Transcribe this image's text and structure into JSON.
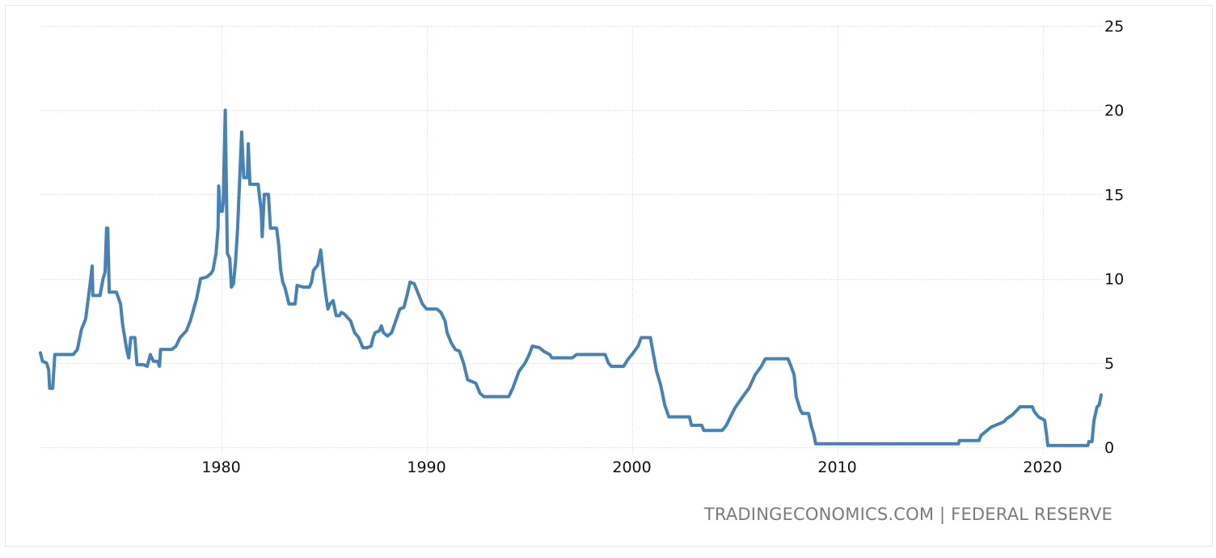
{
  "chart_data": {
    "type": "line",
    "title": "",
    "xlabel": "",
    "ylabel": "",
    "xlim": [
      1971.2,
      2022.85
    ],
    "ylim": [
      0,
      25
    ],
    "x_ticks": [
      1980,
      1990,
      2000,
      2010,
      2020
    ],
    "x_tick_labels": [
      "1980",
      "1990",
      "2000",
      "2010",
      "2020"
    ],
    "y_ticks": [
      0,
      5,
      10,
      15,
      20,
      25
    ],
    "y_tick_labels": [
      "0",
      "5",
      "10",
      "15",
      "20",
      "25"
    ],
    "grid": true,
    "legend": "none",
    "color": "#4682b4",
    "series": [
      {
        "points": [
          [
            1971.2,
            5.6
          ],
          [
            1971.3,
            5.1
          ],
          [
            1971.5,
            5.0
          ],
          [
            1971.6,
            4.6
          ],
          [
            1971.65,
            3.5
          ],
          [
            1971.8,
            3.5
          ],
          [
            1971.9,
            5.5
          ],
          [
            1972.8,
            5.5
          ],
          [
            1973.0,
            5.8
          ],
          [
            1973.2,
            7.0
          ],
          [
            1973.4,
            7.6
          ],
          [
            1973.6,
            9.5
          ],
          [
            1973.72,
            10.75
          ],
          [
            1973.75,
            9.0
          ],
          [
            1974.1,
            9.0
          ],
          [
            1974.25,
            10.0
          ],
          [
            1974.35,
            10.4
          ],
          [
            1974.42,
            13.0
          ],
          [
            1974.48,
            13.0
          ],
          [
            1974.55,
            9.2
          ],
          [
            1974.9,
            9.2
          ],
          [
            1975.1,
            8.5
          ],
          [
            1975.2,
            7.3
          ],
          [
            1975.4,
            5.8
          ],
          [
            1975.5,
            5.3
          ],
          [
            1975.6,
            6.5
          ],
          [
            1975.8,
            6.5
          ],
          [
            1975.9,
            4.9
          ],
          [
            1976.2,
            4.9
          ],
          [
            1976.4,
            4.8
          ],
          [
            1976.55,
            5.5
          ],
          [
            1976.7,
            5.1
          ],
          [
            1976.9,
            5.1
          ],
          [
            1977.0,
            4.8
          ],
          [
            1977.05,
            5.8
          ],
          [
            1977.6,
            5.8
          ],
          [
            1977.8,
            6.0
          ],
          [
            1978.0,
            6.5
          ],
          [
            1978.3,
            6.9
          ],
          [
            1978.5,
            7.5
          ],
          [
            1978.8,
            8.8
          ],
          [
            1979.0,
            10.0
          ],
          [
            1979.3,
            10.1
          ],
          [
            1979.5,
            10.3
          ],
          [
            1979.6,
            10.5
          ],
          [
            1979.75,
            11.5
          ],
          [
            1979.85,
            13.0
          ],
          [
            1979.88,
            15.5
          ],
          [
            1979.95,
            14.0
          ],
          [
            1980.05,
            14.0
          ],
          [
            1980.1,
            14.5
          ],
          [
            1980.2,
            20.0
          ],
          [
            1980.3,
            11.5
          ],
          [
            1980.42,
            11.2
          ],
          [
            1980.5,
            9.5
          ],
          [
            1980.6,
            9.7
          ],
          [
            1980.7,
            11.0
          ],
          [
            1980.8,
            13.0
          ],
          [
            1981.0,
            18.7
          ],
          [
            1981.1,
            16.0
          ],
          [
            1981.28,
            16.0
          ],
          [
            1981.32,
            18.0
          ],
          [
            1981.4,
            15.6
          ],
          [
            1981.8,
            15.6
          ],
          [
            1981.95,
            14.0
          ],
          [
            1982.0,
            12.5
          ],
          [
            1982.1,
            15.0
          ],
          [
            1982.3,
            15.0
          ],
          [
            1982.4,
            13.0
          ],
          [
            1982.7,
            13.0
          ],
          [
            1982.8,
            12.0
          ],
          [
            1982.9,
            10.5
          ],
          [
            1983.0,
            9.8
          ],
          [
            1983.1,
            9.5
          ],
          [
            1983.3,
            8.5
          ],
          [
            1983.6,
            8.5
          ],
          [
            1983.7,
            9.6
          ],
          [
            1984.0,
            9.5
          ],
          [
            1984.3,
            9.5
          ],
          [
            1984.4,
            9.8
          ],
          [
            1984.5,
            10.5
          ],
          [
            1984.7,
            10.8
          ],
          [
            1984.85,
            11.7
          ],
          [
            1984.95,
            10.5
          ],
          [
            1985.1,
            9.0
          ],
          [
            1985.2,
            8.2
          ],
          [
            1985.3,
            8.5
          ],
          [
            1985.45,
            8.7
          ],
          [
            1985.6,
            7.8
          ],
          [
            1985.75,
            7.8
          ],
          [
            1985.85,
            8.0
          ],
          [
            1986.0,
            7.9
          ],
          [
            1986.3,
            7.5
          ],
          [
            1986.5,
            6.8
          ],
          [
            1986.7,
            6.5
          ],
          [
            1986.9,
            5.9
          ],
          [
            1987.1,
            5.9
          ],
          [
            1987.3,
            6.0
          ],
          [
            1987.4,
            6.5
          ],
          [
            1987.5,
            6.8
          ],
          [
            1987.7,
            6.9
          ],
          [
            1987.8,
            7.2
          ],
          [
            1987.9,
            6.8
          ],
          [
            1988.1,
            6.6
          ],
          [
            1988.3,
            6.8
          ],
          [
            1988.5,
            7.5
          ],
          [
            1988.7,
            8.2
          ],
          [
            1988.9,
            8.3
          ],
          [
            1989.05,
            9.0
          ],
          [
            1989.2,
            9.8
          ],
          [
            1989.4,
            9.7
          ],
          [
            1989.6,
            9.1
          ],
          [
            1989.8,
            8.5
          ],
          [
            1990.0,
            8.2
          ],
          [
            1990.5,
            8.2
          ],
          [
            1990.7,
            8.0
          ],
          [
            1990.9,
            7.5
          ],
          [
            1991.0,
            6.8
          ],
          [
            1991.2,
            6.2
          ],
          [
            1991.4,
            5.8
          ],
          [
            1991.6,
            5.7
          ],
          [
            1991.8,
            5.0
          ],
          [
            1992.0,
            4.0
          ],
          [
            1992.2,
            3.9
          ],
          [
            1992.4,
            3.8
          ],
          [
            1992.6,
            3.2
          ],
          [
            1992.8,
            3.0
          ],
          [
            1994.0,
            3.0
          ],
          [
            1994.2,
            3.5
          ],
          [
            1994.5,
            4.5
          ],
          [
            1994.8,
            5.0
          ],
          [
            1995.0,
            5.5
          ],
          [
            1995.15,
            6.0
          ],
          [
            1995.5,
            5.9
          ],
          [
            1995.7,
            5.7
          ],
          [
            1996.0,
            5.5
          ],
          [
            1996.1,
            5.3
          ],
          [
            1997.1,
            5.3
          ],
          [
            1997.3,
            5.5
          ],
          [
            1998.7,
            5.5
          ],
          [
            1998.85,
            5.0
          ],
          [
            1999.0,
            4.8
          ],
          [
            1999.6,
            4.8
          ],
          [
            1999.8,
            5.2
          ],
          [
            2000.0,
            5.5
          ],
          [
            2000.3,
            6.0
          ],
          [
            2000.45,
            6.5
          ],
          [
            2000.9,
            6.5
          ],
          [
            2001.05,
            5.5
          ],
          [
            2001.2,
            4.5
          ],
          [
            2001.4,
            3.7
          ],
          [
            2001.6,
            2.5
          ],
          [
            2001.8,
            1.8
          ],
          [
            2002.8,
            1.8
          ],
          [
            2002.9,
            1.3
          ],
          [
            2003.4,
            1.3
          ],
          [
            2003.5,
            1.0
          ],
          [
            2004.4,
            1.0
          ],
          [
            2004.6,
            1.3
          ],
          [
            2004.8,
            1.8
          ],
          [
            2005.0,
            2.3
          ],
          [
            2005.4,
            3.0
          ],
          [
            2005.7,
            3.5
          ],
          [
            2006.0,
            4.3
          ],
          [
            2006.3,
            4.8
          ],
          [
            2006.5,
            5.25
          ],
          [
            2007.6,
            5.25
          ],
          [
            2007.75,
            4.8
          ],
          [
            2007.9,
            4.3
          ],
          [
            2008.0,
            3.0
          ],
          [
            2008.2,
            2.2
          ],
          [
            2008.3,
            2.0
          ],
          [
            2008.6,
            2.0
          ],
          [
            2008.75,
            1.2
          ],
          [
            2008.85,
            0.8
          ],
          [
            2008.95,
            0.2
          ],
          [
            2015.9,
            0.2
          ],
          [
            2015.95,
            0.4
          ],
          [
            2016.9,
            0.4
          ],
          [
            2017.0,
            0.7
          ],
          [
            2017.2,
            0.9
          ],
          [
            2017.5,
            1.2
          ],
          [
            2017.9,
            1.4
          ],
          [
            2018.1,
            1.5
          ],
          [
            2018.25,
            1.7
          ],
          [
            2018.5,
            1.9
          ],
          [
            2018.75,
            2.2
          ],
          [
            2018.9,
            2.4
          ],
          [
            2019.5,
            2.4
          ],
          [
            2019.6,
            2.1
          ],
          [
            2019.8,
            1.8
          ],
          [
            2020.1,
            1.6
          ],
          [
            2020.2,
            0.65
          ],
          [
            2020.25,
            0.1
          ],
          [
            2022.2,
            0.1
          ],
          [
            2022.25,
            0.33
          ],
          [
            2022.4,
            0.33
          ],
          [
            2022.5,
            1.6
          ],
          [
            2022.65,
            2.4
          ],
          [
            2022.75,
            2.5
          ],
          [
            2022.85,
            3.1
          ]
        ]
      }
    ]
  },
  "footer": {
    "source_text": "TRADINGECONOMICS.COM | FEDERAL RESERVE"
  }
}
